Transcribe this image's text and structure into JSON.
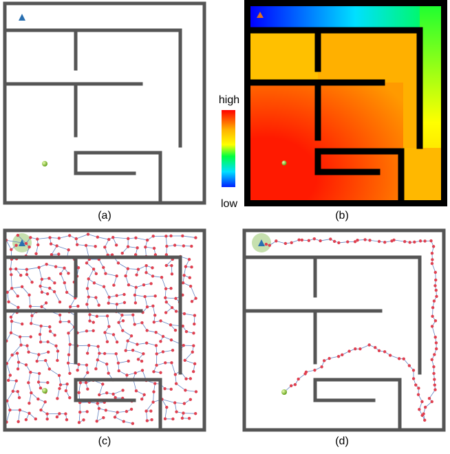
{
  "colorbar": {
    "high": "high",
    "low": "low"
  },
  "captions": [
    "(a)",
    "(b)",
    "(c)",
    "(d)"
  ]
}
